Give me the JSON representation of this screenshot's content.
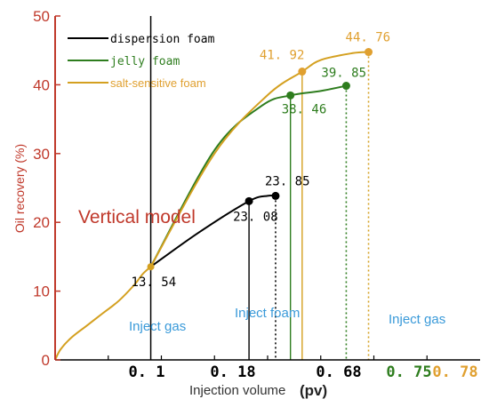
{
  "chart_data": {
    "type": "line",
    "title": "",
    "xlabel": "Injection volume",
    "xlabel_unit": "(pv)",
    "ylabel": "Oil recovery  (%)",
    "ylim": [
      0,
      50
    ],
    "yticks": [
      "0",
      "10",
      "20",
      "30",
      "40",
      "50"
    ],
    "xtick_labels": [
      {
        "label": "0. 1",
        "color": "#000000"
      },
      {
        "label": "0. 18",
        "color": "#000000"
      },
      {
        "label": "0. 68",
        "color": "#000000"
      },
      {
        "label": "0. 75",
        "color": "#2e7d1e"
      },
      {
        "label": "0. 78",
        "color": "#e0a030"
      }
    ],
    "model_label": "Vertical model",
    "phase_labels": [
      "Inject gas",
      "Inject foam",
      "Inject gas"
    ],
    "colors": {
      "axis_y": "#c0392b",
      "dispersion": "#000000",
      "jelly": "#2e7d1e",
      "salt": "#d4a020",
      "salt_label": "#e0a030",
      "phase_text": "#3a9ad9",
      "model_text": "#c0392b"
    },
    "shared_segment": {
      "name": "salt-sensitive foam",
      "points": [
        [
          0,
          0
        ],
        [
          0.01,
          1.5
        ],
        [
          0.03,
          3.2
        ],
        [
          0.06,
          5.0
        ],
        [
          0.09,
          6.8
        ],
        [
          0.12,
          8.6
        ],
        [
          0.15,
          11.0
        ],
        [
          0.165,
          12.5
        ],
        [
          0.18,
          13.54
        ]
      ]
    },
    "series": [
      {
        "name": "dispersion foam",
        "color_key": "dispersion",
        "points": [
          [
            0.18,
            13.54
          ],
          [
            0.27,
            18.5
          ],
          [
            0.365,
            23.08
          ],
          [
            0.4,
            23.85
          ],
          [
            0.415,
            23.85
          ]
        ],
        "end_points": [
          {
            "x": 0.365,
            "y": 23.08,
            "label": "23. 08"
          },
          {
            "x": 0.415,
            "y": 23.85,
            "label": "23. 85"
          }
        ]
      },
      {
        "name": "jelly foam",
        "color_key": "jelly",
        "points": [
          [
            0.18,
            13.54
          ],
          [
            0.3,
            30.5
          ],
          [
            0.39,
            37.0
          ],
          [
            0.443,
            38.46
          ],
          [
            0.5,
            39.1
          ],
          [
            0.548,
            39.85
          ]
        ],
        "end_points": [
          {
            "x": 0.443,
            "y": 38.46,
            "label": "38. 46"
          },
          {
            "x": 0.548,
            "y": 39.85,
            "label": "39. 85"
          }
        ]
      },
      {
        "name": "salt-sensitive foam",
        "color_key": "salt",
        "points": [
          [
            0.18,
            13.54
          ],
          [
            0.3,
            30.0
          ],
          [
            0.4,
            38.5
          ],
          [
            0.465,
            41.92
          ],
          [
            0.5,
            43.6
          ],
          [
            0.56,
            44.6
          ],
          [
            0.59,
            44.76
          ]
        ],
        "end_points": [
          {
            "x": 0.465,
            "y": 41.92,
            "label": "41. 92"
          },
          {
            "x": 0.59,
            "y": 44.76,
            "label": "44. 76"
          }
        ]
      }
    ],
    "junction_point": {
      "x": 0.18,
      "y": 13.54,
      "label": "13. 54"
    },
    "legend_position": "top-left"
  }
}
